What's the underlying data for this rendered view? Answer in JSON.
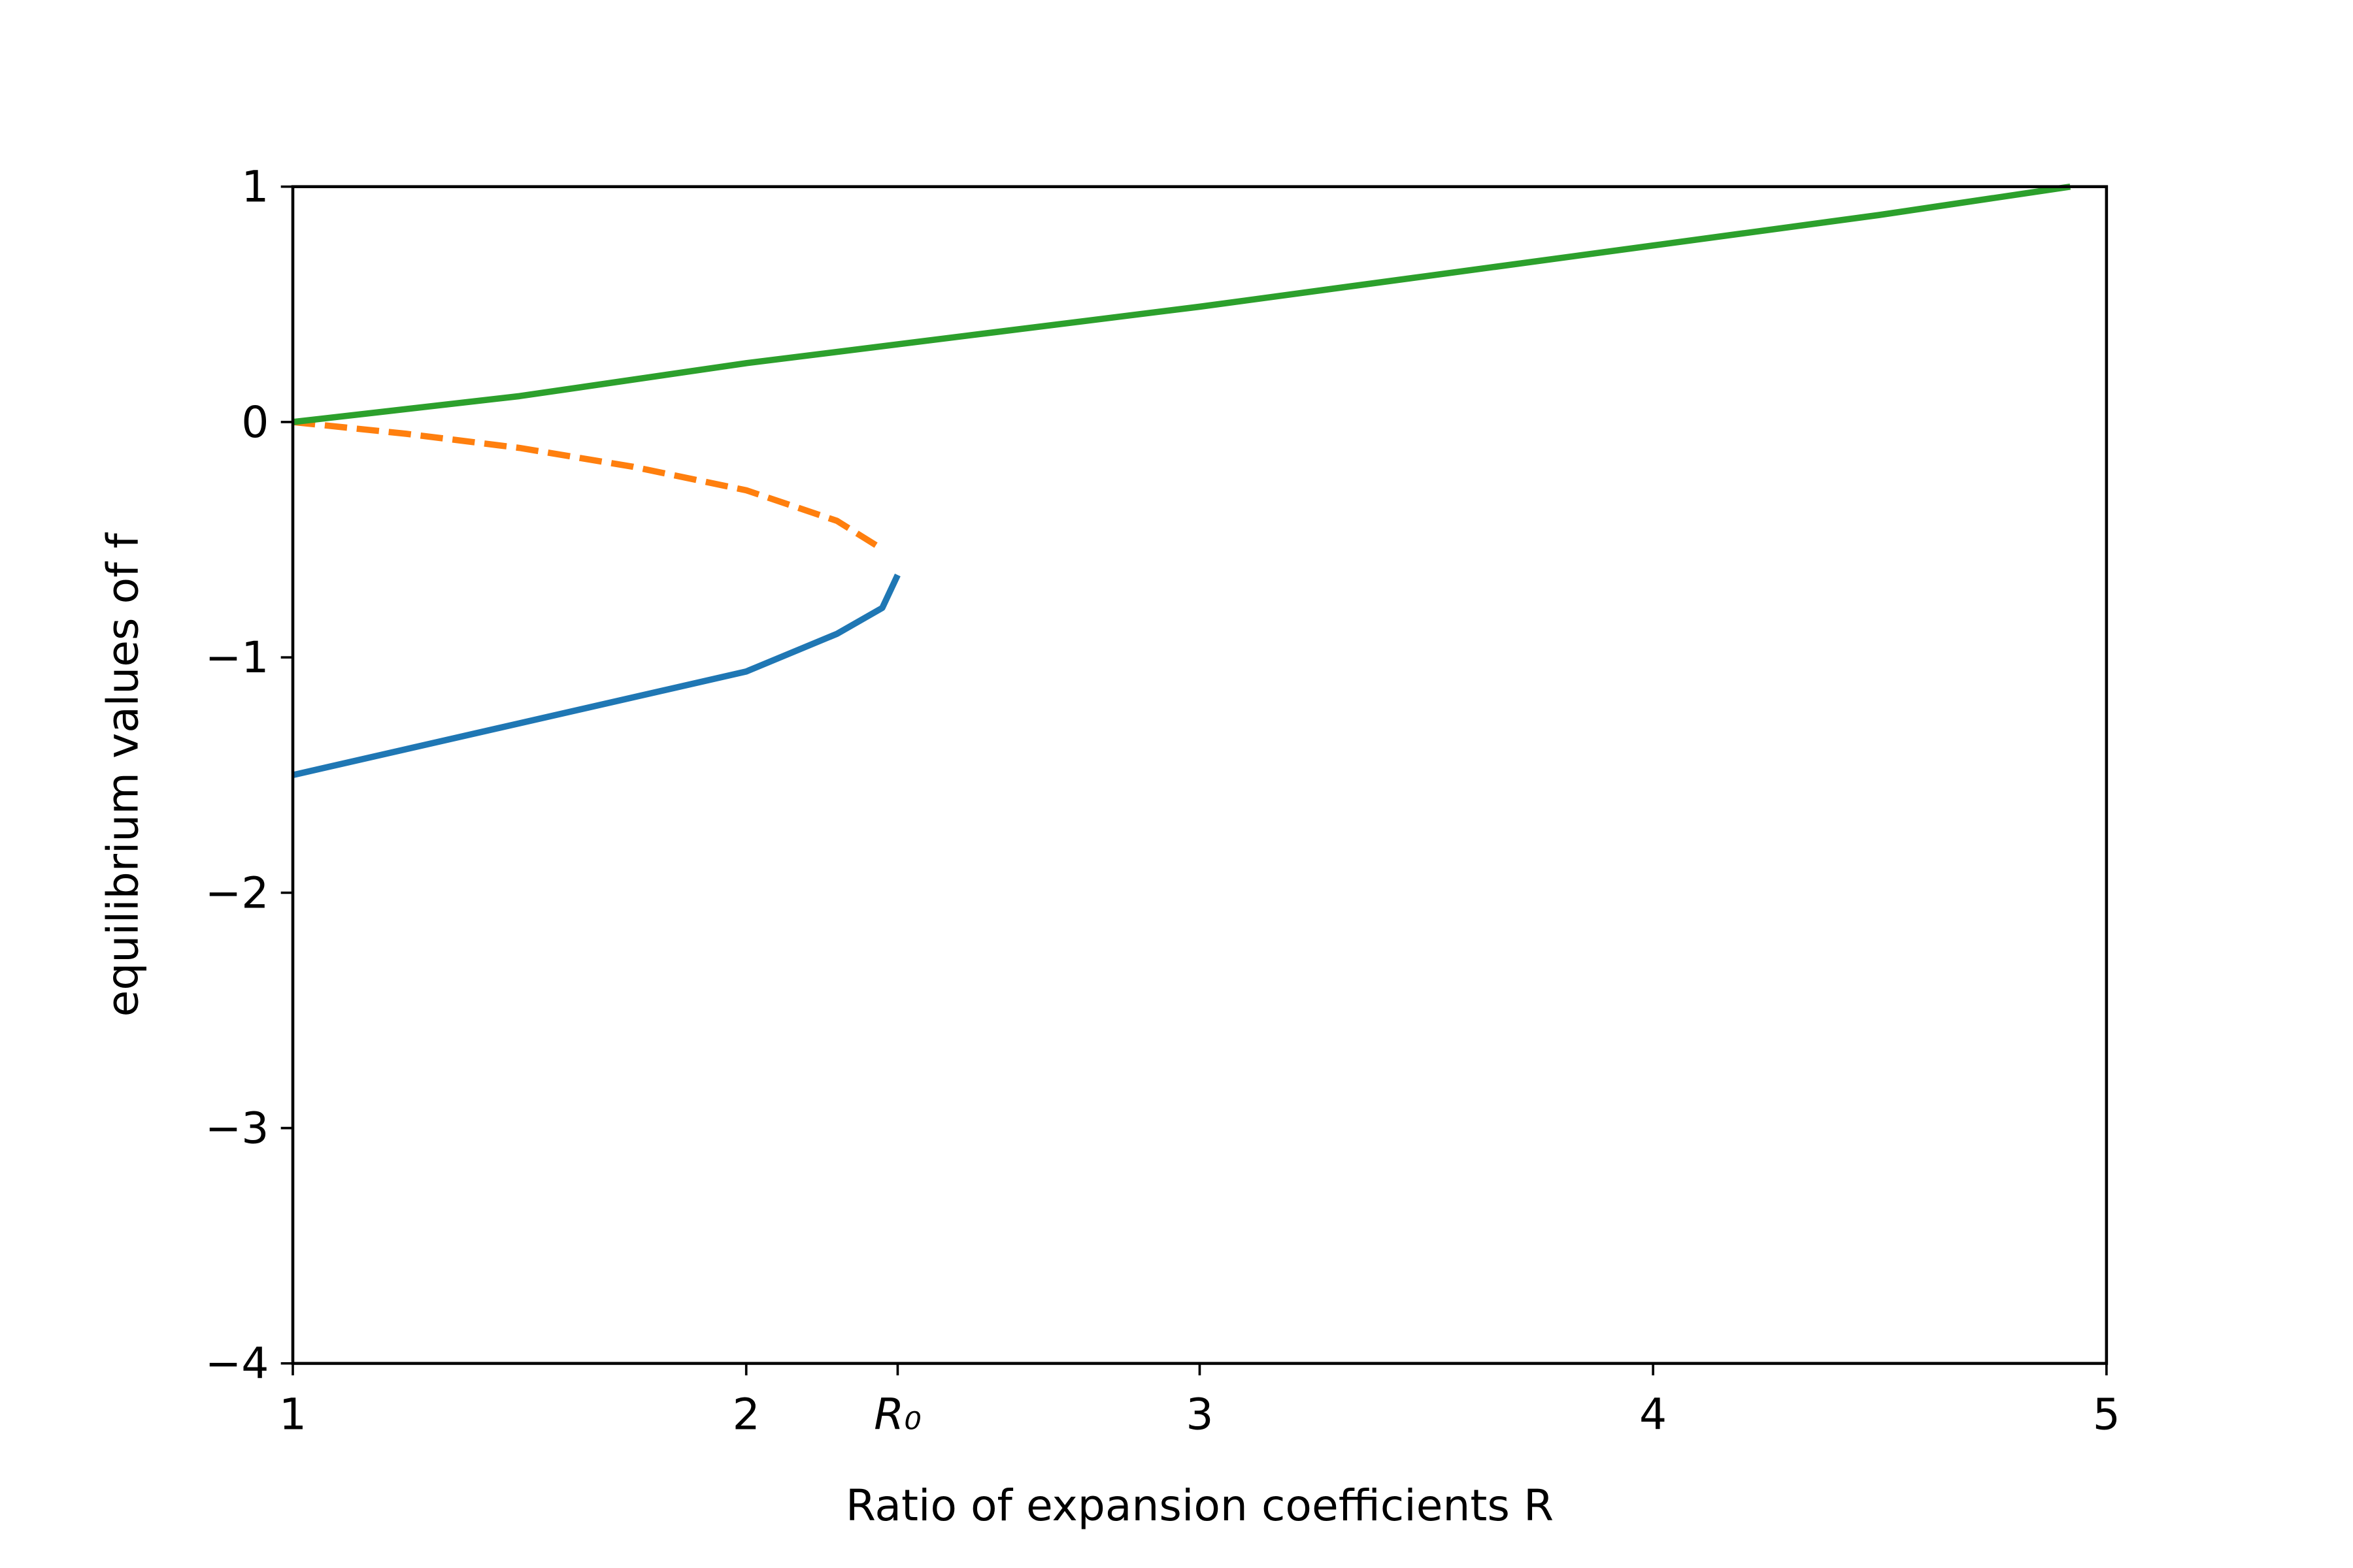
{
  "chart_data": {
    "type": "line",
    "xlabel": "Ratio of expansion coefficients R",
    "ylabel": "equilibrium values of f",
    "xlim": [
      1,
      5
    ],
    "ylim": [
      -4,
      1
    ],
    "xticks": [
      1,
      2,
      {
        "value": 2.334,
        "label": "R₀"
      },
      3,
      4,
      5
    ],
    "yticks": [
      1,
      0,
      {
        "value": -1,
        "label": "−1"
      },
      {
        "value": -2,
        "label": "−2"
      },
      {
        "value": -3,
        "label": "−3"
      },
      {
        "value": -4,
        "label": "−4"
      }
    ],
    "series": [
      {
        "color": "#1f77b4",
        "dashed": false,
        "x": [
          1,
          1.5,
          2,
          2.2,
          2.3,
          2.334
        ],
        "values": [
          -1.5,
          -1.28,
          -1.06,
          -0.9,
          -0.79,
          -0.65
        ]
      },
      {
        "color": "#ff7f0e",
        "dashed": true,
        "x": [
          1,
          1.25,
          1.5,
          1.75,
          2,
          2.2,
          2.3
        ],
        "values": [
          0,
          -0.05,
          -0.11,
          -0.19,
          -0.29,
          -0.42,
          -0.54
        ]
      },
      {
        "color": "#2ca02c",
        "dashed": false,
        "x": [
          1,
          1.5,
          2,
          2.5,
          3,
          3.5,
          4,
          4.5,
          4.92
        ],
        "values": [
          0,
          0.11,
          0.25,
          0.37,
          0.49,
          0.62,
          0.75,
          0.88,
          1.0
        ]
      }
    ]
  }
}
